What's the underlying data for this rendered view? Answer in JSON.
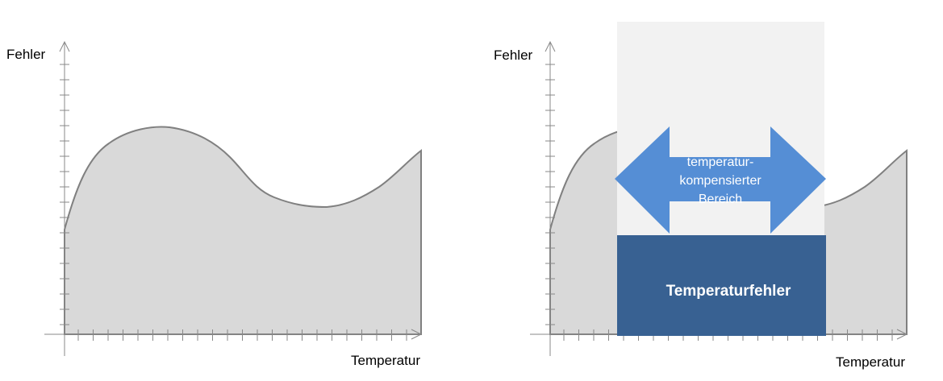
{
  "panels": [
    {
      "y_label": "Fehler",
      "x_label": "Temperatur"
    },
    {
      "y_label": "Fehler",
      "x_label": "Temperatur",
      "region_label": [
        "temperatur-",
        "kompensierter",
        "Bereich"
      ],
      "error_label": "Temperaturfehler"
    }
  ]
}
